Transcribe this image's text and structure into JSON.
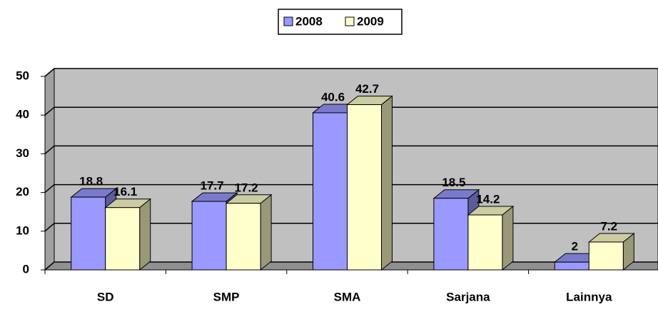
{
  "chart_data": {
    "type": "bar3d",
    "categories": [
      "SD",
      "SMP",
      "SMA",
      "Sarjana",
      "Lainnya"
    ],
    "series": [
      {
        "name": "2008",
        "color": "#9999ff",
        "values": [
          18.8,
          17.7,
          40.6,
          18.5,
          2
        ]
      },
      {
        "name": "2009",
        "color": "#ffffcc",
        "values": [
          16.1,
          17.2,
          42.7,
          14.2,
          7.2
        ]
      }
    ],
    "ylim": [
      0,
      50
    ],
    "yticks": [
      0,
      10,
      20,
      30,
      40,
      50
    ],
    "grid": true,
    "legend": "top"
  }
}
